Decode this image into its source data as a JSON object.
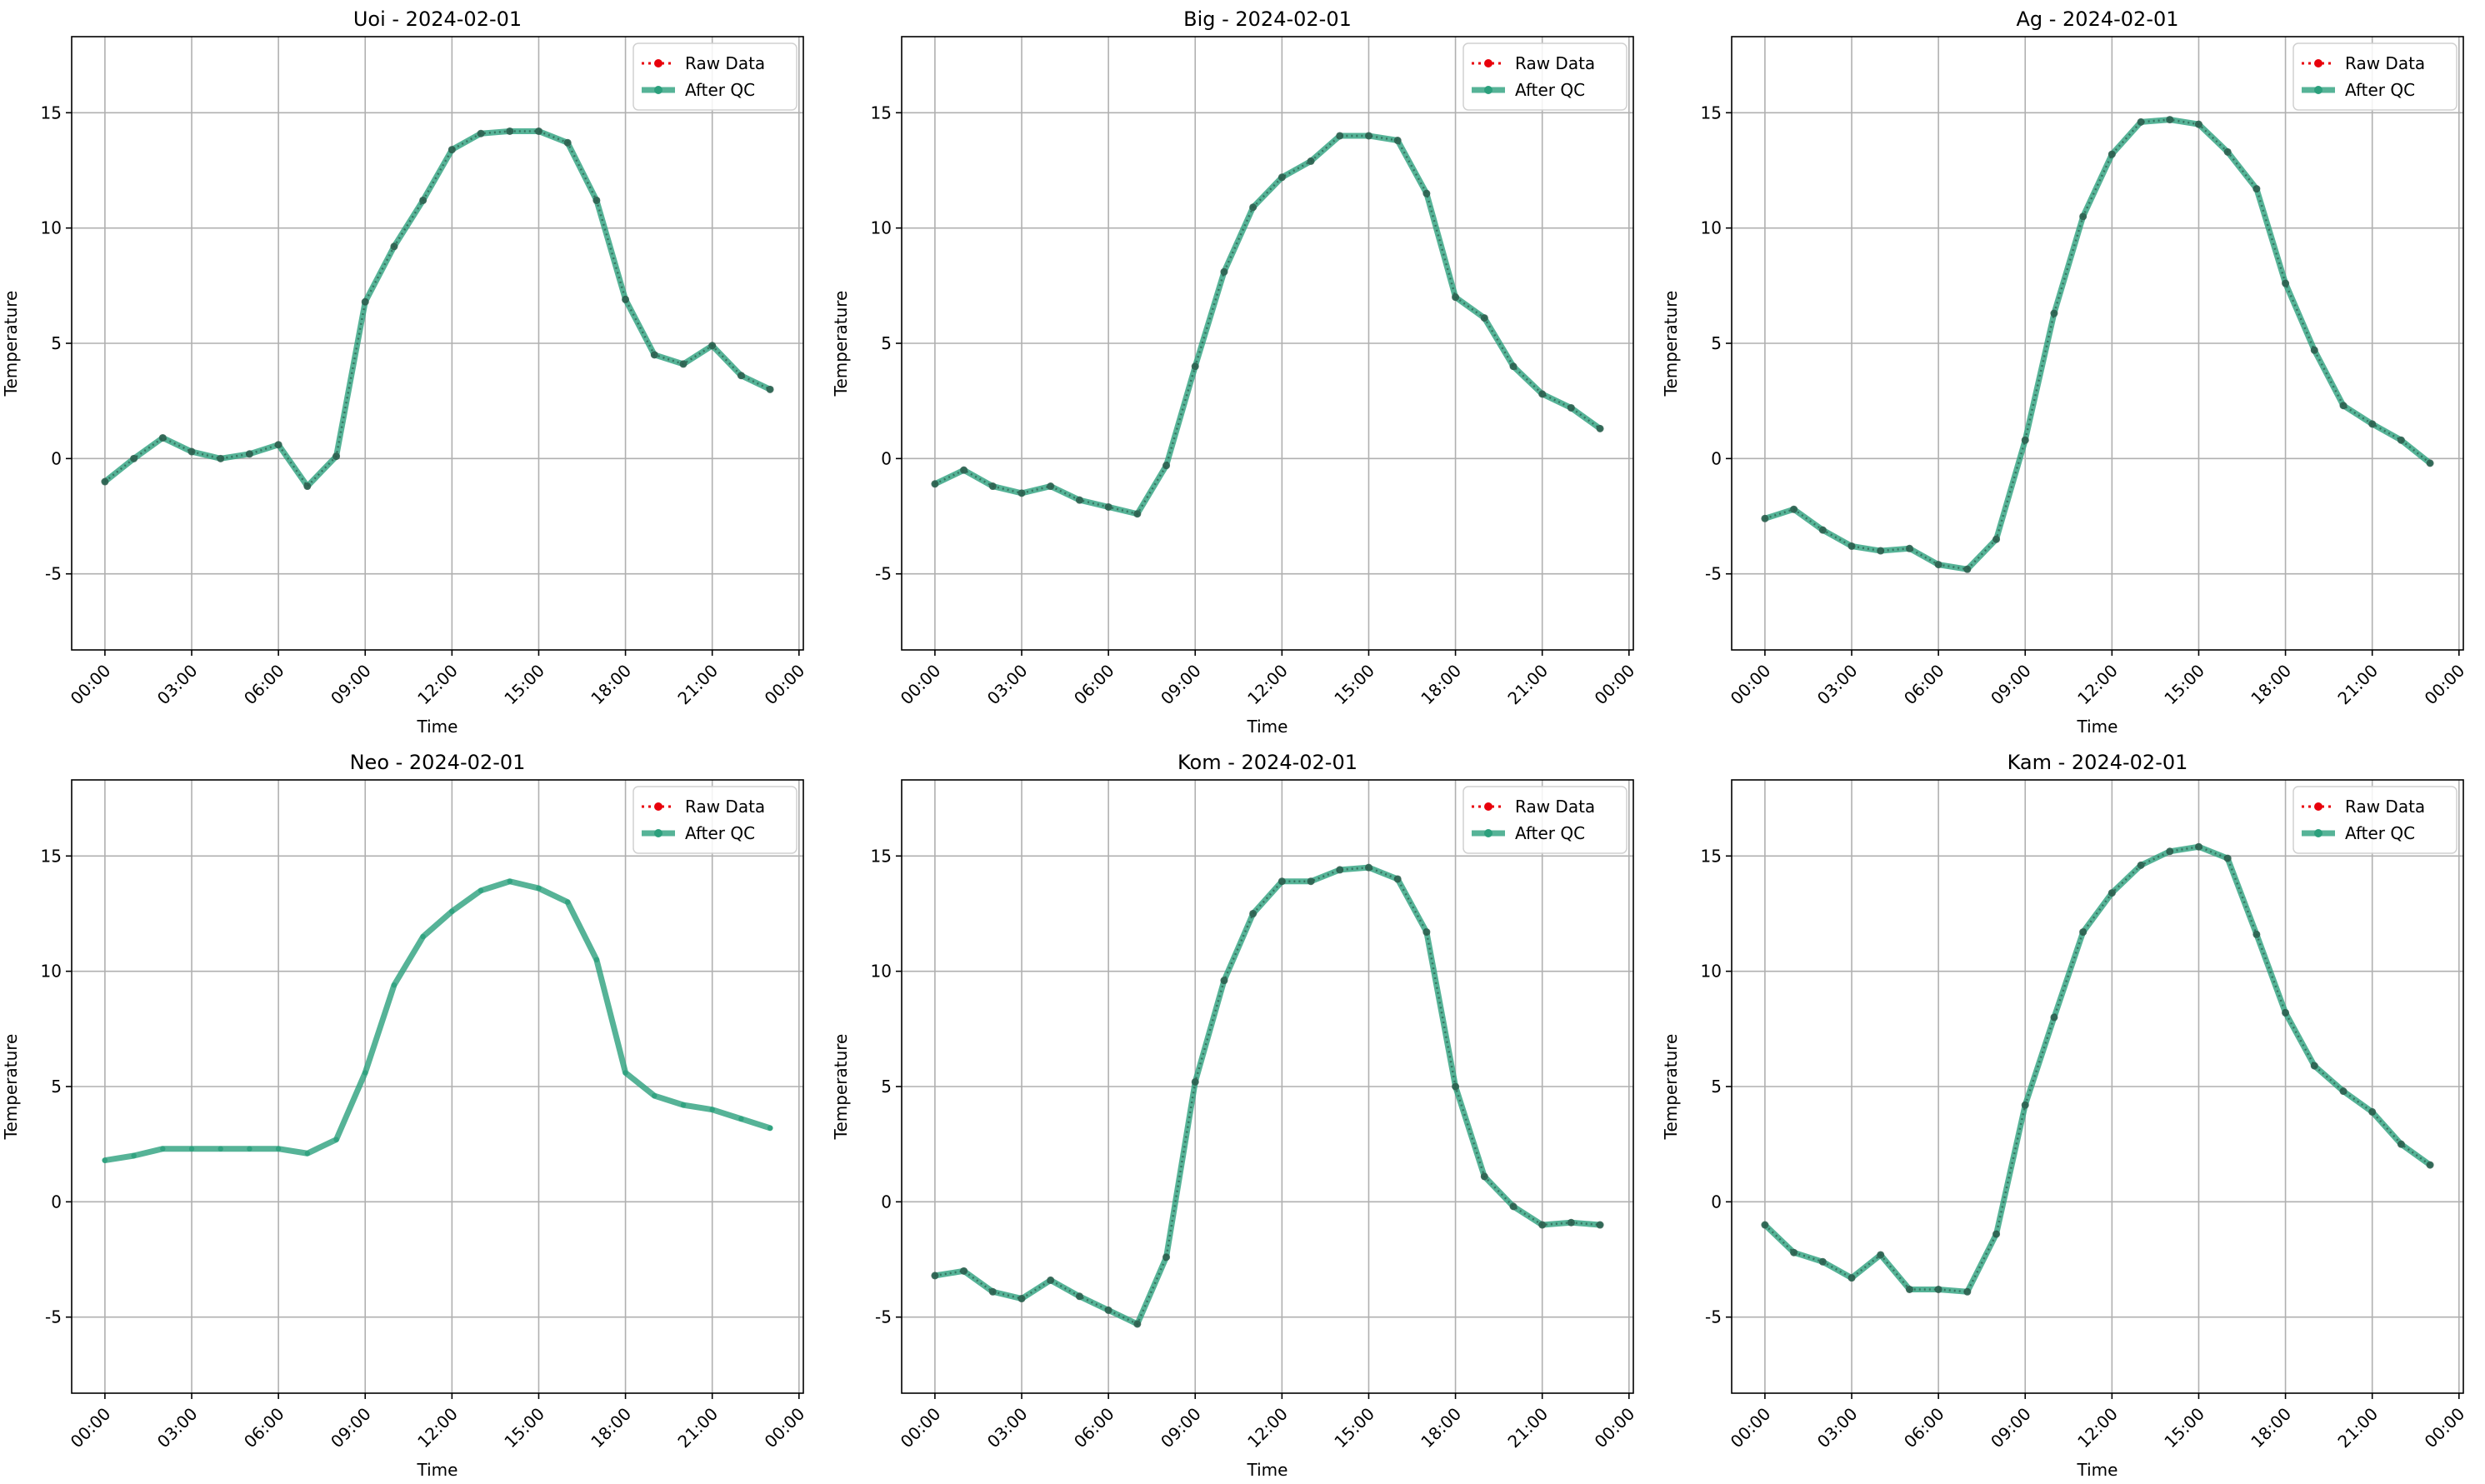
{
  "colors": {
    "raw": "#e8000b",
    "qc": "#2ca07d",
    "grid": "#b0b0b0",
    "marker": "#2a5c4b"
  },
  "legend": {
    "raw_label": "Raw Data",
    "qc_label": "After QC"
  },
  "chart_data": [
    {
      "type": "line",
      "title": "Uoi - 2024-02-01",
      "xlabel": "Time",
      "ylabel": "Temperature",
      "x_ticks": [
        "00:00",
        "03:00",
        "06:00",
        "09:00",
        "12:00",
        "15:00",
        "18:00",
        "21:00",
        "00:00"
      ],
      "y_ticks": [
        -5,
        0,
        5,
        10,
        15
      ],
      "ylim": [
        -8.3,
        18.3
      ],
      "grid": true,
      "legend_position": "top-right",
      "x_hours": [
        0,
        1,
        2,
        3,
        4,
        5,
        6,
        7,
        8,
        9,
        10,
        11,
        12,
        13,
        14,
        15,
        16,
        17,
        18,
        19,
        20,
        21,
        22,
        23
      ],
      "series": [
        {
          "name": "Raw Data",
          "values": [
            -1.0,
            0.0,
            0.9,
            0.3,
            0.0,
            0.2,
            0.6,
            -1.2,
            0.1,
            6.8,
            9.2,
            11.2,
            13.4,
            14.1,
            14.2,
            14.2,
            13.7,
            11.2,
            6.9,
            4.5,
            4.1,
            4.9,
            3.6,
            3.0
          ]
        },
        {
          "name": "After QC",
          "values": [
            -1.0,
            0.0,
            0.9,
            0.3,
            0.0,
            0.2,
            0.6,
            -1.2,
            0.1,
            6.8,
            9.2,
            11.2,
            13.4,
            14.1,
            14.2,
            14.2,
            13.7,
            11.2,
            6.9,
            4.5,
            4.1,
            4.9,
            3.6,
            3.0
          ]
        }
      ]
    },
    {
      "type": "line",
      "title": "Big - 2024-02-01",
      "xlabel": "Time",
      "ylabel": "Temperature",
      "x_ticks": [
        "00:00",
        "03:00",
        "06:00",
        "09:00",
        "12:00",
        "15:00",
        "18:00",
        "21:00",
        "00:00"
      ],
      "y_ticks": [
        -5,
        0,
        5,
        10,
        15
      ],
      "ylim": [
        -8.3,
        18.3
      ],
      "grid": true,
      "legend_position": "top-right",
      "x_hours": [
        0,
        1,
        2,
        3,
        4,
        5,
        6,
        7,
        8,
        9,
        10,
        11,
        12,
        13,
        14,
        15,
        16,
        17,
        18,
        19,
        20,
        21,
        22,
        23
      ],
      "series": [
        {
          "name": "Raw Data",
          "values": [
            -1.1,
            -0.5,
            -1.2,
            -1.5,
            -1.2,
            -1.8,
            -2.1,
            -2.4,
            -0.3,
            4.0,
            8.1,
            10.9,
            12.2,
            12.9,
            14.0,
            14.0,
            13.8,
            11.5,
            7.0,
            6.1,
            4.0,
            2.8,
            2.2,
            1.3
          ]
        },
        {
          "name": "After QC",
          "values": [
            -1.1,
            -0.5,
            -1.2,
            -1.5,
            -1.2,
            -1.8,
            -2.1,
            -2.4,
            -0.3,
            4.0,
            8.1,
            10.9,
            12.2,
            12.9,
            14.0,
            14.0,
            13.8,
            11.5,
            7.0,
            6.1,
            4.0,
            2.8,
            2.2,
            1.3
          ]
        }
      ]
    },
    {
      "type": "line",
      "title": "Ag - 2024-02-01",
      "xlabel": "Time",
      "ylabel": "Temperature",
      "x_ticks": [
        "00:00",
        "03:00",
        "06:00",
        "09:00",
        "12:00",
        "15:00",
        "18:00",
        "21:00",
        "00:00"
      ],
      "y_ticks": [
        -5,
        0,
        5,
        10,
        15
      ],
      "ylim": [
        -8.3,
        18.3
      ],
      "grid": true,
      "legend_position": "top-right",
      "x_hours": [
        0,
        1,
        2,
        3,
        4,
        5,
        6,
        7,
        8,
        9,
        10,
        11,
        12,
        13,
        14,
        15,
        16,
        17,
        18,
        19,
        20,
        21,
        22,
        23
      ],
      "series": [
        {
          "name": "Raw Data",
          "values": [
            -2.6,
            -2.2,
            -3.1,
            -3.8,
            -4.0,
            -3.9,
            -4.6,
            -4.8,
            -3.5,
            0.8,
            6.3,
            10.5,
            13.2,
            14.6,
            14.7,
            14.5,
            13.3,
            11.7,
            7.6,
            4.7,
            2.3,
            1.5,
            0.8,
            -0.2
          ]
        },
        {
          "name": "After QC",
          "values": [
            -2.6,
            -2.2,
            -3.1,
            -3.8,
            -4.0,
            -3.9,
            -4.6,
            -4.8,
            -3.5,
            0.8,
            6.3,
            10.5,
            13.2,
            14.6,
            14.7,
            14.5,
            13.3,
            11.7,
            7.6,
            4.7,
            2.3,
            1.5,
            0.8,
            -0.2
          ]
        }
      ]
    },
    {
      "type": "line",
      "title": "Neo - 2024-02-01",
      "xlabel": "Time",
      "ylabel": "Temperature",
      "x_ticks": [
        "00:00",
        "03:00",
        "06:00",
        "09:00",
        "12:00",
        "15:00",
        "18:00",
        "21:00",
        "00:00"
      ],
      "y_ticks": [
        -5,
        0,
        5,
        10,
        15
      ],
      "ylim": [
        -8.3,
        18.3
      ],
      "grid": true,
      "legend_position": "top-right",
      "x_hours": [
        0,
        1,
        2,
        3,
        4,
        5,
        6,
        7,
        8,
        9,
        10,
        11,
        12,
        13,
        14,
        15,
        16,
        17,
        18,
        19,
        20,
        21,
        22,
        23
      ],
      "series": [
        {
          "name": "Raw Data",
          "values": []
        },
        {
          "name": "After QC",
          "values": [
            1.8,
            2.0,
            2.3,
            2.3,
            2.3,
            2.3,
            2.3,
            2.1,
            2.7,
            5.6,
            9.4,
            11.5,
            12.6,
            13.5,
            13.9,
            13.6,
            13.0,
            10.5,
            5.6,
            4.6,
            4.2,
            4.0,
            3.6,
            3.2
          ]
        }
      ]
    },
    {
      "type": "line",
      "title": "Kom - 2024-02-01",
      "xlabel": "Time",
      "ylabel": "Temperature",
      "x_ticks": [
        "00:00",
        "03:00",
        "06:00",
        "09:00",
        "12:00",
        "15:00",
        "18:00",
        "21:00",
        "00:00"
      ],
      "y_ticks": [
        -5,
        0,
        5,
        10,
        15
      ],
      "ylim": [
        -8.3,
        18.3
      ],
      "grid": true,
      "legend_position": "top-right",
      "x_hours": [
        0,
        1,
        2,
        3,
        4,
        5,
        6,
        7,
        8,
        9,
        10,
        11,
        12,
        13,
        14,
        15,
        16,
        17,
        18,
        19,
        20,
        21,
        22,
        23
      ],
      "series": [
        {
          "name": "Raw Data",
          "values": [
            -3.2,
            -3.0,
            -3.9,
            -4.2,
            -3.4,
            -4.1,
            -4.7,
            -5.3,
            -2.4,
            5.2,
            9.6,
            12.5,
            13.9,
            13.9,
            14.4,
            14.5,
            14.0,
            11.7,
            5.0,
            1.1,
            -0.2,
            -1.0,
            -0.9,
            -1.0
          ]
        },
        {
          "name": "After QC",
          "values": [
            -3.2,
            -3.0,
            -3.9,
            -4.2,
            -3.4,
            -4.1,
            -4.7,
            -5.3,
            -2.4,
            5.2,
            9.6,
            12.5,
            13.9,
            13.9,
            14.4,
            14.5,
            14.0,
            11.7,
            5.0,
            1.1,
            -0.2,
            -1.0,
            -0.9,
            -1.0
          ]
        }
      ]
    },
    {
      "type": "line",
      "title": "Kam - 2024-02-01",
      "xlabel": "Time",
      "ylabel": "Temperature",
      "x_ticks": [
        "00:00",
        "03:00",
        "06:00",
        "09:00",
        "12:00",
        "15:00",
        "18:00",
        "21:00",
        "00:00"
      ],
      "y_ticks": [
        -5,
        0,
        5,
        10,
        15
      ],
      "ylim": [
        -8.3,
        18.3
      ],
      "grid": true,
      "legend_position": "top-right",
      "x_hours": [
        0,
        1,
        2,
        3,
        4,
        5,
        6,
        7,
        8,
        9,
        10,
        11,
        12,
        13,
        14,
        15,
        16,
        17,
        18,
        19,
        20,
        21,
        22,
        23
      ],
      "series": [
        {
          "name": "Raw Data",
          "values": [
            -1.0,
            -2.2,
            -2.6,
            -3.3,
            -2.3,
            -3.8,
            -3.8,
            -3.9,
            -1.4,
            4.2,
            8.0,
            11.7,
            13.4,
            14.6,
            15.2,
            15.4,
            14.9,
            11.6,
            8.2,
            5.9,
            4.8,
            3.9,
            2.5,
            1.6
          ]
        },
        {
          "name": "After QC",
          "values": [
            -1.0,
            -2.2,
            -2.6,
            -3.3,
            -2.3,
            -3.8,
            -3.8,
            -3.9,
            -1.4,
            4.2,
            8.0,
            11.7,
            13.4,
            14.6,
            15.2,
            15.4,
            14.9,
            11.6,
            8.2,
            5.9,
            4.8,
            3.9,
            2.5,
            1.6
          ]
        }
      ]
    }
  ]
}
